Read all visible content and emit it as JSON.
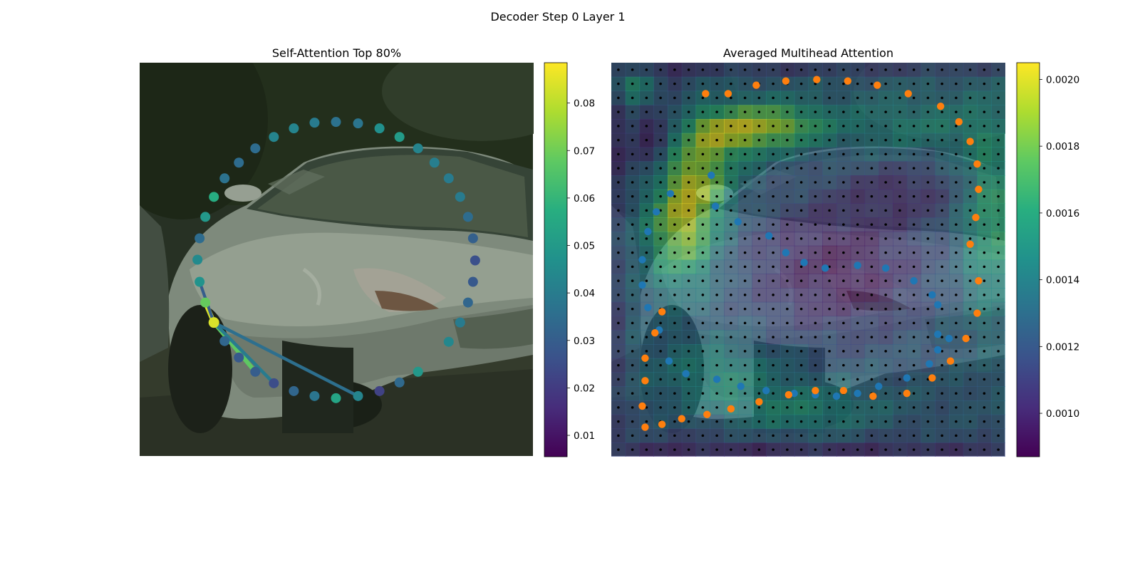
{
  "figure": {
    "suptitle": "Decoder Step 0 Layer 1"
  },
  "chart_data": [
    {
      "type": "scatter",
      "title": "Self-Attention Top 80%",
      "background": "photo of a silver car (front-left view) on a road",
      "axes": "off",
      "points_value": "self-attention weight shown by marker color (viridis)",
      "colorbar": {
        "colormap": "viridis",
        "range": [
          0.0055,
          0.0885
        ],
        "ticks": [
          0.01,
          0.02,
          0.03,
          0.04,
          0.05,
          0.06,
          0.07,
          0.08
        ],
        "tick_labels": [
          "0.01",
          "0.02",
          "0.03",
          "0.04",
          "0.05",
          "0.06",
          "0.07",
          "0.08"
        ]
      },
      "image_size": [
        552,
        552
      ],
      "query_index": 39,
      "points": [
        {
          "x": 245,
          "y": 84,
          "v": 0.04
        },
        {
          "x": 275,
          "y": 83,
          "v": 0.037
        },
        {
          "x": 306,
          "y": 85,
          "v": 0.038
        },
        {
          "x": 336,
          "y": 92,
          "v": 0.047
        },
        {
          "x": 364,
          "y": 104,
          "v": 0.051
        },
        {
          "x": 390,
          "y": 120,
          "v": 0.043
        },
        {
          "x": 413,
          "y": 140,
          "v": 0.041
        },
        {
          "x": 433,
          "y": 162,
          "v": 0.04
        },
        {
          "x": 449,
          "y": 188,
          "v": 0.04
        },
        {
          "x": 460,
          "y": 216,
          "v": 0.035
        },
        {
          "x": 467,
          "y": 246,
          "v": 0.031
        },
        {
          "x": 470,
          "y": 277,
          "v": 0.026
        },
        {
          "x": 467,
          "y": 307,
          "v": 0.029
        },
        {
          "x": 460,
          "y": 336,
          "v": 0.033
        },
        {
          "x": 449,
          "y": 364,
          "v": 0.04
        },
        {
          "x": 433,
          "y": 391,
          "v": 0.044
        },
        {
          "x": 390,
          "y": 433,
          "v": 0.05
        },
        {
          "x": 364,
          "y": 448,
          "v": 0.034
        },
        {
          "x": 336,
          "y": 460,
          "v": 0.022
        },
        {
          "x": 306,
          "y": 467,
          "v": 0.043
        },
        {
          "x": 275,
          "y": 470,
          "v": 0.054
        },
        {
          "x": 245,
          "y": 467,
          "v": 0.038
        },
        {
          "x": 216,
          "y": 460,
          "v": 0.033
        },
        {
          "x": 188,
          "y": 449,
          "v": 0.025
        },
        {
          "x": 162,
          "y": 433,
          "v": 0.03
        },
        {
          "x": 139,
          "y": 413,
          "v": 0.029
        },
        {
          "x": 119,
          "y": 390,
          "v": 0.033
        },
        {
          "x": 104,
          "y": 364,
          "v": 0.084
        },
        {
          "x": 92,
          "y": 336,
          "v": 0.069
        },
        {
          "x": 84,
          "y": 307,
          "v": 0.048
        },
        {
          "x": 84,
          "y": 246,
          "v": 0.035
        },
        {
          "x": 92,
          "y": 216,
          "v": 0.05
        },
        {
          "x": 104,
          "y": 188,
          "v": 0.057
        },
        {
          "x": 119,
          "y": 162,
          "v": 0.037
        },
        {
          "x": 139,
          "y": 140,
          "v": 0.035
        },
        {
          "x": 162,
          "y": 120,
          "v": 0.035
        },
        {
          "x": 188,
          "y": 104,
          "v": 0.043
        },
        {
          "x": 216,
          "y": 92,
          "v": 0.043
        },
        {
          "x": 81,
          "y": 276,
          "v": 0.045
        },
        {
          "x": 104,
          "y": 364,
          "v": 0.084
        }
      ],
      "attention_lines": [
        {
          "from": 39,
          "to": 28,
          "w": 0.084
        },
        {
          "from": 39,
          "to": 24,
          "w": 0.068
        },
        {
          "from": 39,
          "to": 23,
          "w": 0.04
        },
        {
          "from": 39,
          "to": 19,
          "w": 0.036
        },
        {
          "from": 39,
          "to": 29,
          "w": 0.03
        }
      ]
    },
    {
      "type": "heatmap",
      "title": "Averaged Multihead Attention",
      "background": "same car photo overlaid by a 28x28 attention heatmap",
      "axes": "off",
      "grid_size": [
        28,
        28
      ],
      "colorbar": {
        "colormap": "viridis",
        "range": [
          0.00087,
          0.00205
        ],
        "ticks": [
          0.001,
          0.0012,
          0.0014,
          0.0016,
          0.0018,
          0.002
        ],
        "tick_labels": [
          "0.0010",
          "0.0012",
          "0.0014",
          "0.0016",
          "0.0018",
          "0.0020"
        ]
      },
      "hotspots": [
        {
          "cx": 4.5,
          "cy": 10.5,
          "sx": 1.8,
          "sy": 3.2,
          "a": 0.00074
        },
        {
          "cx": 7.5,
          "cy": 4.4,
          "sx": 2.5,
          "sy": 1.3,
          "a": 0.00058
        },
        {
          "cx": 11.5,
          "cy": 3.9,
          "sx": 2.5,
          "sy": 1.1,
          "a": 0.0005
        },
        {
          "cx": 6.0,
          "cy": 7.5,
          "sx": 1.8,
          "sy": 1.8,
          "a": 0.00034
        },
        {
          "cx": 26.5,
          "cy": 10.5,
          "sx": 1.5,
          "sy": 5.0,
          "a": 0.0004
        },
        {
          "cx": 13.0,
          "cy": 24.5,
          "sx": 4.0,
          "sy": 1.6,
          "a": 0.0003
        },
        {
          "cx": 7.0,
          "cy": 21.5,
          "sx": 3.0,
          "sy": 1.6,
          "a": 0.00026
        },
        {
          "cx": 21.0,
          "cy": 4.0,
          "sx": 4.0,
          "sy": 1.5,
          "a": 0.00022
        },
        {
          "cx": 1.5,
          "cy": 1.5,
          "sx": 1.0,
          "sy": 1.0,
          "a": 0.0005
        }
      ],
      "cool_zones": [
        {
          "cx": 2.5,
          "cy": 4.5,
          "sx": 1.5,
          "sy": 3.0,
          "a": 0.00036
        },
        {
          "cx": 15.5,
          "cy": 14.0,
          "sx": 4.5,
          "sy": 3.5,
          "a": 0.00034
        },
        {
          "cx": 20.5,
          "cy": 8.5,
          "sx": 3.0,
          "sy": 1.5,
          "a": 0.0002
        },
        {
          "cx": 12.0,
          "cy": 26.5,
          "sx": 8.0,
          "sy": 1.0,
          "a": 0.00018
        }
      ],
      "series": [
        {
          "color": "#1f77b4",
          "points": [
            {
              "x": 7.1,
              "y": 8.0
            },
            {
              "x": 7.4,
              "y": 10.2
            },
            {
              "x": 9.0,
              "y": 11.3
            },
            {
              "x": 11.2,
              "y": 12.3
            },
            {
              "x": 12.4,
              "y": 13.5
            },
            {
              "x": 13.7,
              "y": 14.2
            },
            {
              "x": 15.2,
              "y": 14.6
            },
            {
              "x": 17.5,
              "y": 14.4
            },
            {
              "x": 19.5,
              "y": 14.6
            },
            {
              "x": 21.5,
              "y": 15.5
            },
            {
              "x": 22.8,
              "y": 16.5
            },
            {
              "x": 23.2,
              "y": 17.2
            },
            {
              "x": 23.2,
              "y": 19.3
            },
            {
              "x": 24.0,
              "y": 19.6
            },
            {
              "x": 23.2,
              "y": 20.4
            },
            {
              "x": 22.6,
              "y": 21.4
            },
            {
              "x": 21.0,
              "y": 22.4
            },
            {
              "x": 19.0,
              "y": 23.0
            },
            {
              "x": 17.5,
              "y": 23.5
            },
            {
              "x": 16.0,
              "y": 23.7
            },
            {
              "x": 14.5,
              "y": 23.6
            },
            {
              "x": 13.0,
              "y": 23.5
            },
            {
              "x": 11.0,
              "y": 23.3
            },
            {
              "x": 9.2,
              "y": 23.0
            },
            {
              "x": 7.5,
              "y": 22.5
            },
            {
              "x": 5.3,
              "y": 22.1
            },
            {
              "x": 4.1,
              "y": 21.2
            },
            {
              "x": 3.4,
              "y": 19.0
            },
            {
              "x": 2.6,
              "y": 17.4
            },
            {
              "x": 2.2,
              "y": 15.8
            },
            {
              "x": 2.2,
              "y": 14.0
            },
            {
              "x": 2.6,
              "y": 12.0
            },
            {
              "x": 3.2,
              "y": 10.6
            },
            {
              "x": 4.2,
              "y": 9.3
            }
          ]
        },
        {
          "color": "#ff7f0e",
          "points": [
            {
              "x": 6.7,
              "y": 2.2
            },
            {
              "x": 8.3,
              "y": 2.2
            },
            {
              "x": 10.3,
              "y": 1.6
            },
            {
              "x": 12.4,
              "y": 1.3
            },
            {
              "x": 14.6,
              "y": 1.2
            },
            {
              "x": 16.8,
              "y": 1.3
            },
            {
              "x": 18.9,
              "y": 1.6
            },
            {
              "x": 21.1,
              "y": 2.2
            },
            {
              "x": 23.4,
              "y": 3.1
            },
            {
              "x": 24.7,
              "y": 4.2
            },
            {
              "x": 25.5,
              "y": 5.6
            },
            {
              "x": 26.0,
              "y": 7.2
            },
            {
              "x": 26.1,
              "y": 9.0
            },
            {
              "x": 25.9,
              "y": 11.0
            },
            {
              "x": 25.5,
              "y": 12.9
            },
            {
              "x": 26.1,
              "y": 15.5
            },
            {
              "x": 26.0,
              "y": 17.8
            },
            {
              "x": 25.2,
              "y": 19.6
            },
            {
              "x": 24.1,
              "y": 21.2
            },
            {
              "x": 22.8,
              "y": 22.4
            },
            {
              "x": 21.0,
              "y": 23.5
            },
            {
              "x": 18.6,
              "y": 23.7
            },
            {
              "x": 16.5,
              "y": 23.3
            },
            {
              "x": 14.5,
              "y": 23.3
            },
            {
              "x": 12.6,
              "y": 23.6
            },
            {
              "x": 10.5,
              "y": 24.1
            },
            {
              "x": 8.5,
              "y": 24.6
            },
            {
              "x": 6.8,
              "y": 25.0
            },
            {
              "x": 5.0,
              "y": 25.3
            },
            {
              "x": 3.6,
              "y": 25.7
            },
            {
              "x": 2.4,
              "y": 25.9
            },
            {
              "x": 2.2,
              "y": 24.4
            },
            {
              "x": 2.4,
              "y": 22.6
            },
            {
              "x": 2.4,
              "y": 21.0
            },
            {
              "x": 3.1,
              "y": 19.2
            },
            {
              "x": 3.6,
              "y": 17.7
            }
          ]
        }
      ],
      "reference_grid": {
        "color": "#000000",
        "count": [
          28,
          28
        ]
      }
    }
  ]
}
